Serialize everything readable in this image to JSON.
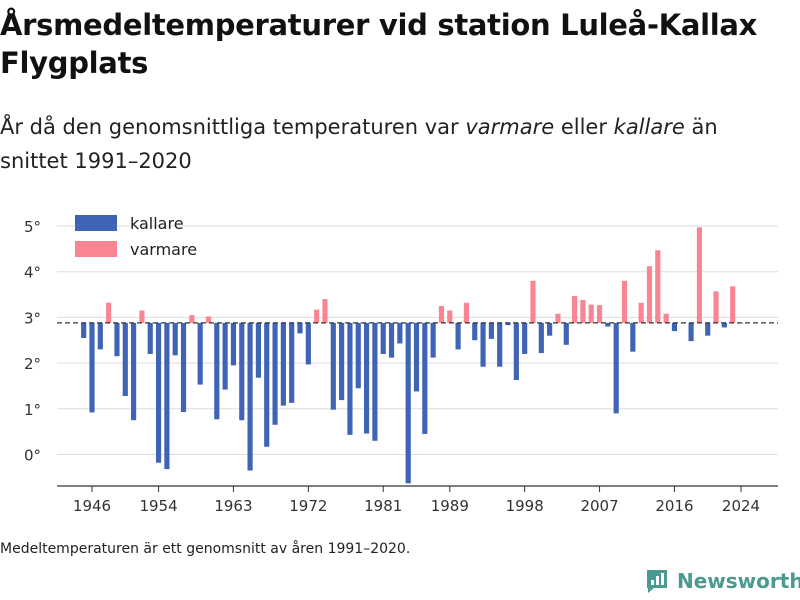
{
  "title": "Årsmedeltemperaturer vid station Luleå-Kallax Flygplats",
  "subtitle": {
    "pre": "År då den genomsnittliga temperaturen var ",
    "warm": "varmare",
    "mid": " eller ",
    "cold": "kallare",
    "post": " än snittet 1991–2020"
  },
  "footnote": "Medeltemperaturen är ett genomsnitt av åren 1991–2020.",
  "brand": "Newsworthy",
  "colors": {
    "cold": "#3f64b5",
    "warm": "#f98593",
    "grid": "#dddddd",
    "axis": "#333333"
  },
  "chart_data": {
    "type": "bar",
    "baseline": 2.88,
    "ylim": [
      -0.7,
      5.2
    ],
    "yticks": [
      0,
      1,
      2,
      3,
      4,
      5
    ],
    "ytick_labels": [
      "0°",
      "1°",
      "2°",
      "3°",
      "4°",
      "5°"
    ],
    "xticks": [
      1946,
      1954,
      1963,
      1972,
      1981,
      1989,
      1998,
      2007,
      2016,
      2024
    ],
    "legend": {
      "placement": "top-left",
      "entries": [
        {
          "key": "cold",
          "label": "kallare"
        },
        {
          "key": "warm",
          "label": "varmare"
        }
      ]
    },
    "years": [
      1945,
      1946,
      1947,
      1948,
      1949,
      1950,
      1951,
      1952,
      1953,
      1954,
      1955,
      1956,
      1957,
      1958,
      1959,
      1960,
      1961,
      1962,
      1963,
      1964,
      1965,
      1966,
      1967,
      1968,
      1969,
      1970,
      1971,
      1972,
      1973,
      1974,
      1975,
      1976,
      1977,
      1978,
      1979,
      1980,
      1981,
      1982,
      1983,
      1984,
      1985,
      1986,
      1987,
      1988,
      1989,
      1990,
      1991,
      1992,
      1993,
      1994,
      1995,
      1996,
      1997,
      1998,
      1999,
      2000,
      2001,
      2002,
      2003,
      2004,
      2005,
      2006,
      2007,
      2008,
      2009,
      2010,
      2011,
      2012,
      2013,
      2014,
      2015,
      2016,
      2017,
      2018,
      2019,
      2020,
      2021,
      2022,
      2023,
      2024
    ],
    "values": [
      2.55,
      0.92,
      2.3,
      3.32,
      2.15,
      1.28,
      0.75,
      3.15,
      2.2,
      -0.18,
      -0.32,
      2.17,
      0.93,
      3.05,
      1.53,
      3.02,
      0.77,
      1.42,
      1.95,
      0.75,
      -0.35,
      1.68,
      0.17,
      0.65,
      1.07,
      1.13,
      2.65,
      1.97,
      3.17,
      3.4,
      0.98,
      1.19,
      0.43,
      1.45,
      0.46,
      0.3,
      2.2,
      2.12,
      2.43,
      -0.63,
      1.38,
      0.45,
      2.12,
      3.25,
      3.15,
      2.3,
      3.32,
      2.5,
      1.92,
      2.53,
      1.92,
      2.83,
      1.63,
      2.2,
      3.8,
      2.22,
      2.6,
      3.08,
      2.4,
      3.47,
      3.38,
      3.28,
      3.27,
      2.8,
      0.9,
      3.8,
      2.25,
      3.32,
      4.12,
      4.47,
      3.08,
      2.7,
      2.88,
      2.48,
      4.97,
      2.6,
      3.57,
      2.78,
      3.68,
      2.88
    ]
  }
}
